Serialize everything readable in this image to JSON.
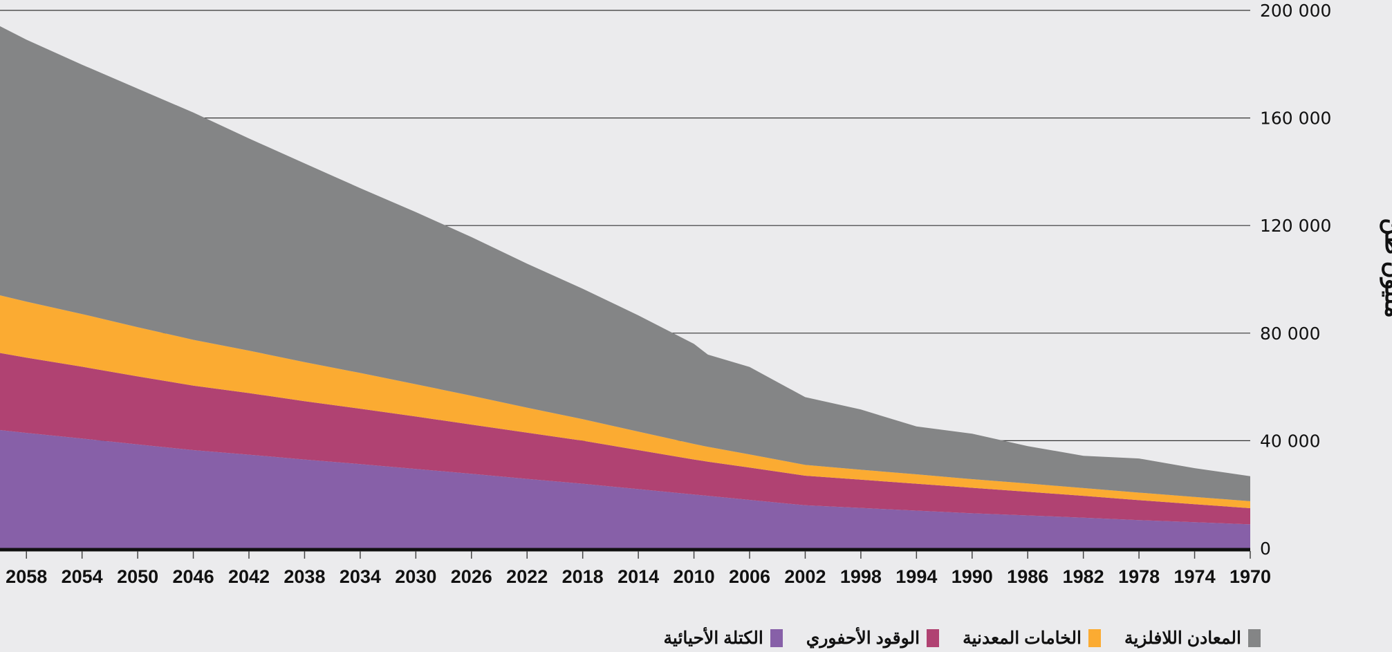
{
  "chart_data": {
    "type": "area",
    "stacked": true,
    "title": "",
    "xlabel": "",
    "ylabel": "مليون طن",
    "x_reversed": true,
    "xlim": [
      1970,
      2060
    ],
    "ylim": [
      0,
      200000
    ],
    "y_ticks": [
      0,
      40000,
      80000,
      120000,
      160000,
      200000
    ],
    "y_tick_labels": [
      "0",
      "40 000",
      "80 000",
      "120 000",
      "160 000",
      "200 000"
    ],
    "x_tick_labels": [
      "2058",
      "2054",
      "2050",
      "2046",
      "2042",
      "2038",
      "2034",
      "2030",
      "2026",
      "2022",
      "2018",
      "2014",
      "2010",
      "2006",
      "2002",
      "1998",
      "1994",
      "1990",
      "1986",
      "1982",
      "1978",
      "1974",
      "1970"
    ],
    "grid": true,
    "legend_position": "bottom",
    "x": [
      1970,
      1974,
      1978,
      1982,
      1986,
      1990,
      1994,
      1998,
      2002,
      2006,
      2009,
      2010,
      2014,
      2018,
      2022,
      2026,
      2030,
      2034,
      2038,
      2042,
      2046,
      2050,
      2054,
      2058,
      2060
    ],
    "series": [
      {
        "name": "الكتلة الأحيائية",
        "color": "#8760a8",
        "values": [
          8900,
          9700,
          10500,
          11400,
          12200,
          13000,
          14000,
          15000,
          16000,
          18000,
          19500,
          20000,
          22000,
          24000,
          25800,
          27700,
          29500,
          31300,
          33000,
          34800,
          36500,
          38600,
          40800,
          42900,
          44000
        ]
      },
      {
        "name": "الوقود الأحفوري",
        "color": "#b04272",
        "values": [
          6000,
          6700,
          7400,
          8100,
          8800,
          9500,
          10000,
          10500,
          11000,
          12000,
          12700,
          13000,
          14500,
          16000,
          17200,
          18300,
          19500,
          20600,
          21700,
          22900,
          24000,
          25300,
          26700,
          28000,
          28700
        ]
      },
      {
        "name": "الخامات المعدنية",
        "color": "#fbab32",
        "values": [
          2600,
          2700,
          2800,
          2900,
          3100,
          3200,
          3500,
          3700,
          4000,
          4900,
          5500,
          5800,
          6900,
          8000,
          9300,
          10700,
          12000,
          13300,
          14500,
          15800,
          17000,
          18300,
          19600,
          20800,
          21500
        ]
      },
      {
        "name": "المعادن اللافلزية",
        "color": "#848586",
        "values": [
          9300,
          10700,
          12700,
          12000,
          13900,
          16900,
          17800,
          22400,
          25200,
          32500,
          34300,
          37200,
          43200,
          48500,
          53500,
          59000,
          64000,
          68700,
          73900,
          78900,
          84500,
          88700,
          92700,
          97400,
          100200
        ]
      }
    ]
  }
}
